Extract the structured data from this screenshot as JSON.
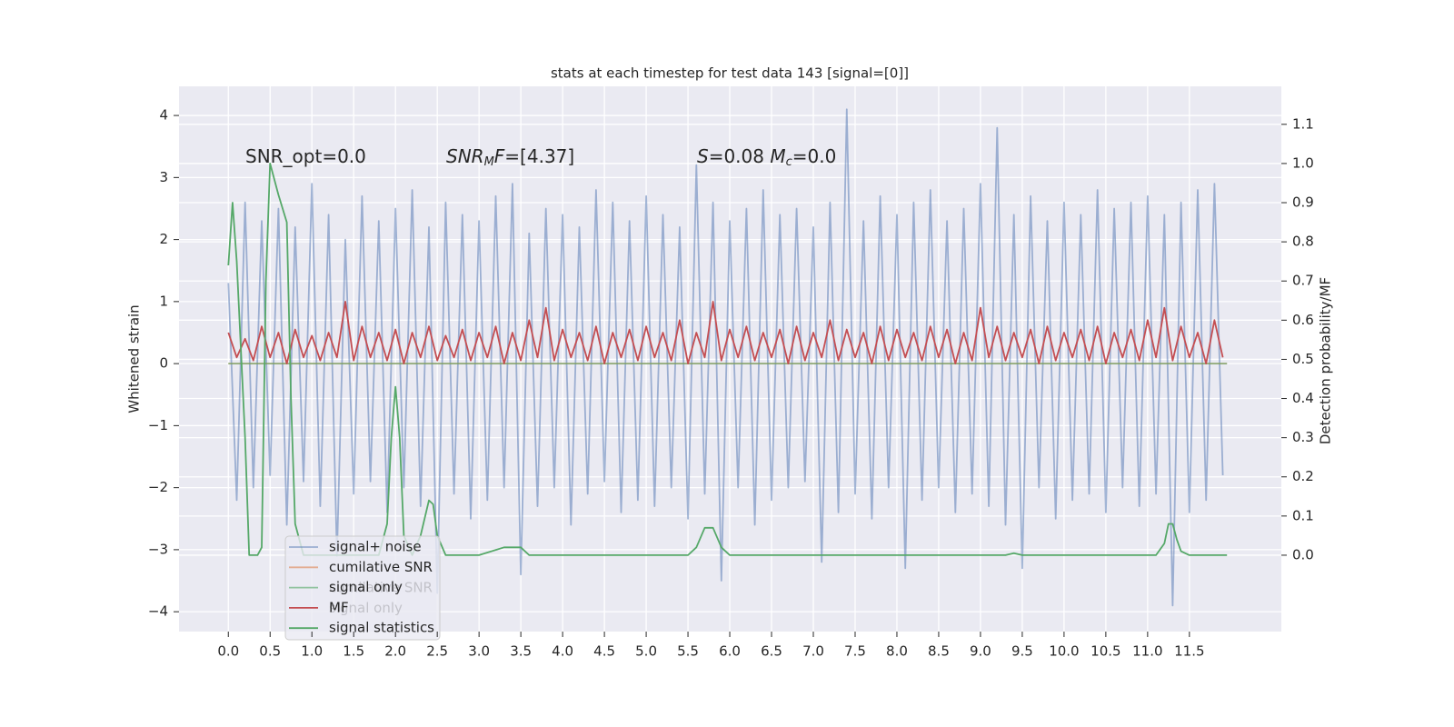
{
  "chart_data": {
    "type": "line",
    "title": "stats at each timestep for test data 143 [signal=[0]]",
    "ylabel": "Whitened strain",
    "y2label": "Detection probability/MF",
    "annotations": [
      [
        {
          "text": "SNR_opt=0.0"
        }
      ],
      [
        {
          "text": "SNR",
          "italic": true
        },
        {
          "text": "M",
          "italic": true,
          "sub": true
        },
        {
          "text": "F",
          "italic": true
        },
        {
          "text": "=[4.37]"
        }
      ],
      [
        {
          "text": "S",
          "italic": true
        },
        {
          "text": "=0.08   "
        },
        {
          "text": "M",
          "italic": true
        },
        {
          "text": "c",
          "italic": true,
          "sub": true
        },
        {
          "text": "=0.0"
        }
      ]
    ],
    "xlim": [
      -0.59,
      12.6
    ],
    "ylim": [
      -4.32,
      4.47
    ],
    "y2lim": [
      -0.195,
      1.197
    ],
    "xticks": [
      {
        "value": 0,
        "label": "0.0"
      },
      0.5,
      {
        "value": 1,
        "label": "1.0"
      },
      1.5,
      {
        "value": 2,
        "label": "2.0"
      },
      2.5,
      {
        "value": 3,
        "label": "3.0"
      },
      3.5,
      {
        "value": 4,
        "label": "4.0"
      },
      4.5,
      {
        "value": 5,
        "label": "5.0"
      },
      5.5,
      {
        "value": 6,
        "label": "6.0"
      },
      6.5,
      {
        "value": 7,
        "label": "7.0"
      },
      7.5,
      {
        "value": 8,
        "label": "8.0"
      },
      8.5,
      {
        "value": 9,
        "label": "9.0"
      },
      9.5,
      {
        "value": 10,
        "label": "10.0"
      },
      10.5,
      {
        "value": 11,
        "label": "11.0"
      },
      11.5
    ],
    "yticks": [
      {
        "value": -4,
        "label": "−4"
      },
      {
        "value": -3,
        "label": "−3"
      },
      {
        "value": -2,
        "label": "−2"
      },
      {
        "value": -1,
        "label": "−1"
      },
      0,
      1,
      2,
      3,
      4
    ],
    "y2ticks": [
      {
        "value": 0,
        "label": "0.0"
      },
      0.1,
      0.2,
      0.3,
      0.4,
      0.5,
      0.6,
      0.7,
      0.8,
      0.9,
      {
        "value": 1,
        "label": "1.0"
      },
      1.1
    ],
    "grid": true,
    "legend": "lower left",
    "hidden_legend": [
      "cumilative SNR",
      "signal only"
    ],
    "x": [
      0.0,
      0.1,
      0.2,
      0.3,
      0.4,
      0.5,
      0.6,
      0.7,
      0.8,
      0.9,
      1.0,
      1.1,
      1.2,
      1.3,
      1.4,
      1.5,
      1.6,
      1.7,
      1.8,
      1.9,
      2.0,
      2.1,
      2.2,
      2.3,
      2.4,
      2.5,
      2.6,
      2.7,
      2.8,
      2.9,
      3.0,
      3.1,
      3.2,
      3.3,
      3.4,
      3.5,
      3.6,
      3.7,
      3.8,
      3.9,
      4.0,
      4.1,
      4.2,
      4.3,
      4.4,
      4.5,
      4.6,
      4.7,
      4.8,
      4.9,
      5.0,
      5.1,
      5.2,
      5.3,
      5.4,
      5.5,
      5.6,
      5.7,
      5.8,
      5.9,
      6.0,
      6.1,
      6.2,
      6.3,
      6.4,
      6.5,
      6.6,
      6.7,
      6.8,
      6.9,
      7.0,
      7.1,
      7.2,
      7.3,
      7.4,
      7.5,
      7.6,
      7.7,
      7.8,
      7.9,
      8.0,
      8.1,
      8.2,
      8.3,
      8.4,
      8.5,
      8.6,
      8.7,
      8.8,
      8.9,
      9.0,
      9.1,
      9.2,
      9.3,
      9.4,
      9.5,
      9.6,
      9.7,
      9.8,
      9.9,
      10.0,
      10.1,
      10.2,
      10.3,
      10.4,
      10.5,
      10.6,
      10.7,
      10.8,
      10.9,
      11.0,
      11.1,
      11.2,
      11.3,
      11.4,
      11.5,
      11.6,
      11.7,
      11.8,
      11.9
    ],
    "series": [
      {
        "name": "signal+ noise",
        "color": "#4c72b0",
        "opacity": 0.5,
        "values": [
          1.3,
          -2.2,
          2.6,
          -2.0,
          2.3,
          -1.8,
          2.5,
          -2.6,
          2.2,
          -1.9,
          2.9,
          -2.3,
          2.4,
          -3.1,
          2.0,
          -2.1,
          2.7,
          -1.9,
          2.3,
          -2.4,
          2.5,
          -2.0,
          2.8,
          -2.3,
          2.2,
          -3.7,
          2.6,
          -2.1,
          2.4,
          -2.5,
          2.3,
          -2.2,
          2.7,
          -2.0,
          2.9,
          -3.4,
          2.1,
          -2.3,
          2.5,
          -2.0,
          2.4,
          -2.6,
          2.2,
          -2.1,
          2.8,
          -1.9,
          2.6,
          -2.4,
          2.3,
          -2.2,
          2.7,
          -2.3,
          2.4,
          -2.0,
          2.2,
          -2.5,
          3.2,
          -2.1,
          2.6,
          -3.5,
          2.3,
          -2.0,
          2.5,
          -2.6,
          2.8,
          -2.2,
          2.4,
          -2.0,
          2.5,
          -1.9,
          2.2,
          -3.2,
          2.6,
          -2.4,
          4.1,
          -2.1,
          2.3,
          -2.5,
          2.7,
          -2.0,
          2.4,
          -3.3,
          2.6,
          -2.2,
          2.8,
          -2.0,
          2.3,
          -2.4,
          2.5,
          -2.1,
          2.9,
          -2.3,
          3.8,
          -2.6,
          2.4,
          -3.3,
          2.7,
          -2.0,
          2.3,
          -2.5,
          2.6,
          -2.2,
          2.4,
          -2.1,
          2.8,
          -2.4,
          2.5,
          -2.0,
          2.6,
          -2.3,
          2.7,
          -2.1,
          2.4,
          -3.9,
          2.6,
          -2.4,
          2.8,
          -2.2,
          2.9,
          -1.8
        ]
      },
      {
        "name": "cumilative SNR",
        "color": "#dd8452",
        "opacity": 0.6,
        "x": [
          0,
          11.95
        ],
        "values": [
          0,
          0
        ]
      },
      {
        "name": "signal only",
        "color": "#55a868",
        "opacity": 0.6,
        "x": [
          0,
          11.95
        ],
        "values": [
          0,
          0
        ]
      },
      {
        "name": "MF",
        "color": "#c44e52",
        "opacity": 1,
        "values": [
          0.5,
          0.1,
          0.4,
          0.05,
          0.6,
          0.1,
          0.5,
          0.0,
          0.55,
          0.1,
          0.45,
          0.05,
          0.5,
          0.1,
          1.0,
          0.05,
          0.6,
          0.1,
          0.5,
          0.05,
          0.55,
          0.0,
          0.5,
          0.1,
          0.6,
          0.05,
          0.45,
          0.1,
          0.55,
          0.05,
          0.5,
          0.1,
          0.6,
          0.0,
          0.5,
          0.05,
          0.7,
          0.1,
          0.9,
          0.05,
          0.55,
          0.1,
          0.5,
          0.05,
          0.6,
          0.0,
          0.5,
          0.1,
          0.55,
          0.05,
          0.6,
          0.1,
          0.5,
          0.05,
          0.7,
          0.0,
          0.5,
          0.1,
          1.0,
          0.05,
          0.55,
          0.1,
          0.6,
          0.05,
          0.5,
          0.1,
          0.55,
          0.0,
          0.6,
          0.05,
          0.5,
          0.1,
          0.7,
          0.05,
          0.55,
          0.1,
          0.5,
          0.0,
          0.6,
          0.05,
          0.55,
          0.1,
          0.5,
          0.05,
          0.6,
          0.1,
          0.55,
          0.0,
          0.5,
          0.05,
          0.9,
          0.1,
          0.6,
          0.05,
          0.5,
          0.1,
          0.55,
          0.0,
          0.6,
          0.05,
          0.5,
          0.1,
          0.55,
          0.05,
          0.6,
          0.0,
          0.5,
          0.1,
          0.55,
          0.05,
          0.7,
          0.1,
          0.9,
          0.05,
          0.6,
          0.1,
          0.5,
          0.0,
          0.7,
          0.1
        ]
      },
      {
        "name": "signal statistics",
        "color": "#55a868",
        "opacity": 1,
        "axis": "y2",
        "x": [
          0.0,
          0.05,
          0.1,
          0.2,
          0.25,
          0.35,
          0.4,
          0.45,
          0.5,
          0.6,
          0.7,
          0.75,
          0.8,
          0.9,
          1.0,
          1.8,
          1.9,
          1.95,
          2.0,
          2.05,
          2.1,
          2.2,
          2.3,
          2.4,
          2.45,
          2.5,
          2.6,
          3.0,
          3.3,
          3.5,
          3.6,
          5.0,
          5.5,
          5.6,
          5.7,
          5.8,
          5.9,
          6.0,
          9.3,
          9.4,
          9.5,
          11.1,
          11.2,
          11.25,
          11.3,
          11.35,
          11.4,
          11.5,
          11.95
        ],
        "values": [
          0.74,
          0.9,
          0.75,
          0.3,
          0.0,
          0.0,
          0.02,
          0.7,
          1.0,
          0.92,
          0.85,
          0.4,
          0.08,
          0.0,
          0.0,
          0.0,
          0.08,
          0.3,
          0.43,
          0.3,
          0.05,
          0.0,
          0.05,
          0.14,
          0.13,
          0.05,
          0.0,
          0.0,
          0.02,
          0.02,
          0.0,
          0.0,
          0.0,
          0.02,
          0.07,
          0.07,
          0.02,
          0.0,
          0.0,
          0.005,
          0.0,
          0.0,
          0.03,
          0.08,
          0.08,
          0.04,
          0.01,
          0.0,
          0.0
        ]
      }
    ]
  }
}
